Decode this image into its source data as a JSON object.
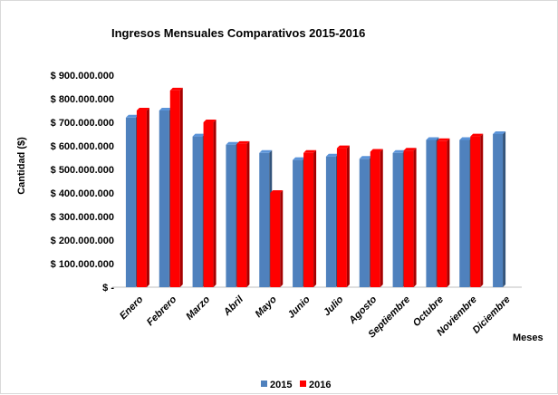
{
  "chart_data": {
    "type": "bar",
    "title": "Ingresos Mensuales Comparativos 2015-2016",
    "xlabel": "Meses",
    "ylabel": "Cantidad ($)",
    "ylim": [
      0,
      900000000
    ],
    "yticks": [
      {
        "value": 0,
        "label": "$ -"
      },
      {
        "value": 100000000,
        "label": "$ 100.000.000"
      },
      {
        "value": 200000000,
        "label": "$ 200.000.000"
      },
      {
        "value": 300000000,
        "label": "$ 300.000.000"
      },
      {
        "value": 400000000,
        "label": "$ 400.000.000"
      },
      {
        "value": 500000000,
        "label": "$ 500.000.000"
      },
      {
        "value": 600000000,
        "label": "$ 600.000.000"
      },
      {
        "value": 700000000,
        "label": "$ 700.000.000"
      },
      {
        "value": 800000000,
        "label": "$ 800.000.000"
      },
      {
        "value": 900000000,
        "label": "$ 900.000.000"
      }
    ],
    "categories": [
      "Enero",
      "Febrero",
      "Marzo",
      "Abril",
      "Mayo",
      "Junio",
      "Julio",
      "Agosto",
      "Septiembre",
      "Octubre",
      "Noviembre",
      "Diciembre"
    ],
    "series": [
      {
        "name": "2015",
        "color": "#4f81bd",
        "values": [
          720000000,
          750000000,
          640000000,
          605000000,
          570000000,
          540000000,
          555000000,
          545000000,
          570000000,
          625000000,
          625000000,
          650000000
        ]
      },
      {
        "name": "2016",
        "color": "#ff0000",
        "values": [
          750000000,
          835000000,
          700000000,
          608000000,
          400000000,
          570000000,
          590000000,
          575000000,
          580000000,
          620000000,
          640000000,
          null
        ]
      }
    ],
    "grid": false,
    "legend_position": "bottom"
  }
}
